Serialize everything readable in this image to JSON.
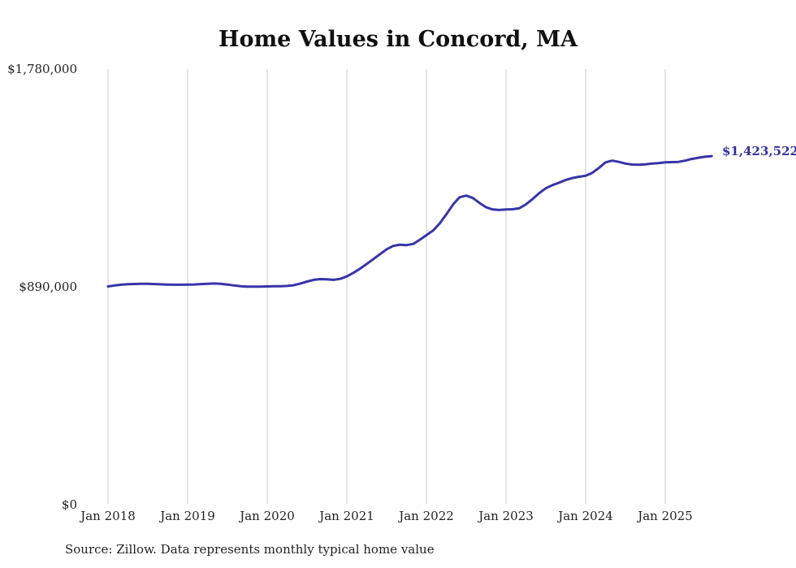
{
  "chart": {
    "title": "Home Values in Concord, MA",
    "end_label": "$1,423,522",
    "source": "Source: Zillow. Data represents monthly typical home value",
    "line_color": "#3734a9",
    "grid_color": "#c9c9c9"
  },
  "chart_data": {
    "type": "line",
    "title": "Home Values in Concord, MA",
    "xlabel": "",
    "ylabel": "",
    "ylim": [
      0,
      1780000
    ],
    "grid": "vertical-only",
    "y_tick_labels": [
      "$1,780,000",
      "$890,000",
      "$0"
    ],
    "y_tick_values": [
      1780000,
      890000,
      0
    ],
    "x_tick_labels": [
      "Jan 2018",
      "Jan 2019",
      "Jan 2020",
      "Jan 2021",
      "Jan 2022",
      "Jan 2023",
      "Jan 2024",
      "Jan 2025"
    ],
    "annotation_last_value": "$1,423,522",
    "series": [
      {
        "name": "Monthly typical home value",
        "start_month": "2018-01",
        "end_month": "2025-08",
        "values": [
          890000,
          894000,
          897000,
          899000,
          900000,
          901000,
          900500,
          899500,
          898500,
          897500,
          897000,
          897000,
          897500,
          898000,
          899500,
          901000,
          902000,
          900500,
          897500,
          894000,
          891000,
          889500,
          889000,
          889500,
          890000,
          890500,
          891000,
          892000,
          895000,
          902000,
          910000,
          917000,
          920000,
          919000,
          917000,
          921000,
          931000,
          946000,
          963000,
          982000,
          1002000,
          1022000,
          1042000,
          1056000,
          1061000,
          1059000,
          1064000,
          1081000,
          1100000,
          1119000,
          1148000,
          1185000,
          1225000,
          1255000,
          1262000,
          1252000,
          1232000,
          1214000,
          1205000,
          1203000,
          1205000,
          1206000,
          1210000,
          1226000,
          1248000,
          1272000,
          1292000,
          1305000,
          1315000,
          1326000,
          1334000,
          1339000,
          1343000,
          1355000,
          1375000,
          1398000,
          1405000,
          1400000,
          1393000,
          1389000,
          1388000,
          1390000,
          1393000,
          1395000,
          1398000,
          1399000,
          1400000,
          1405000,
          1412000,
          1417000,
          1421000,
          1423522
        ]
      }
    ],
    "source": "Source: Zillow. Data represents monthly typical home value"
  }
}
